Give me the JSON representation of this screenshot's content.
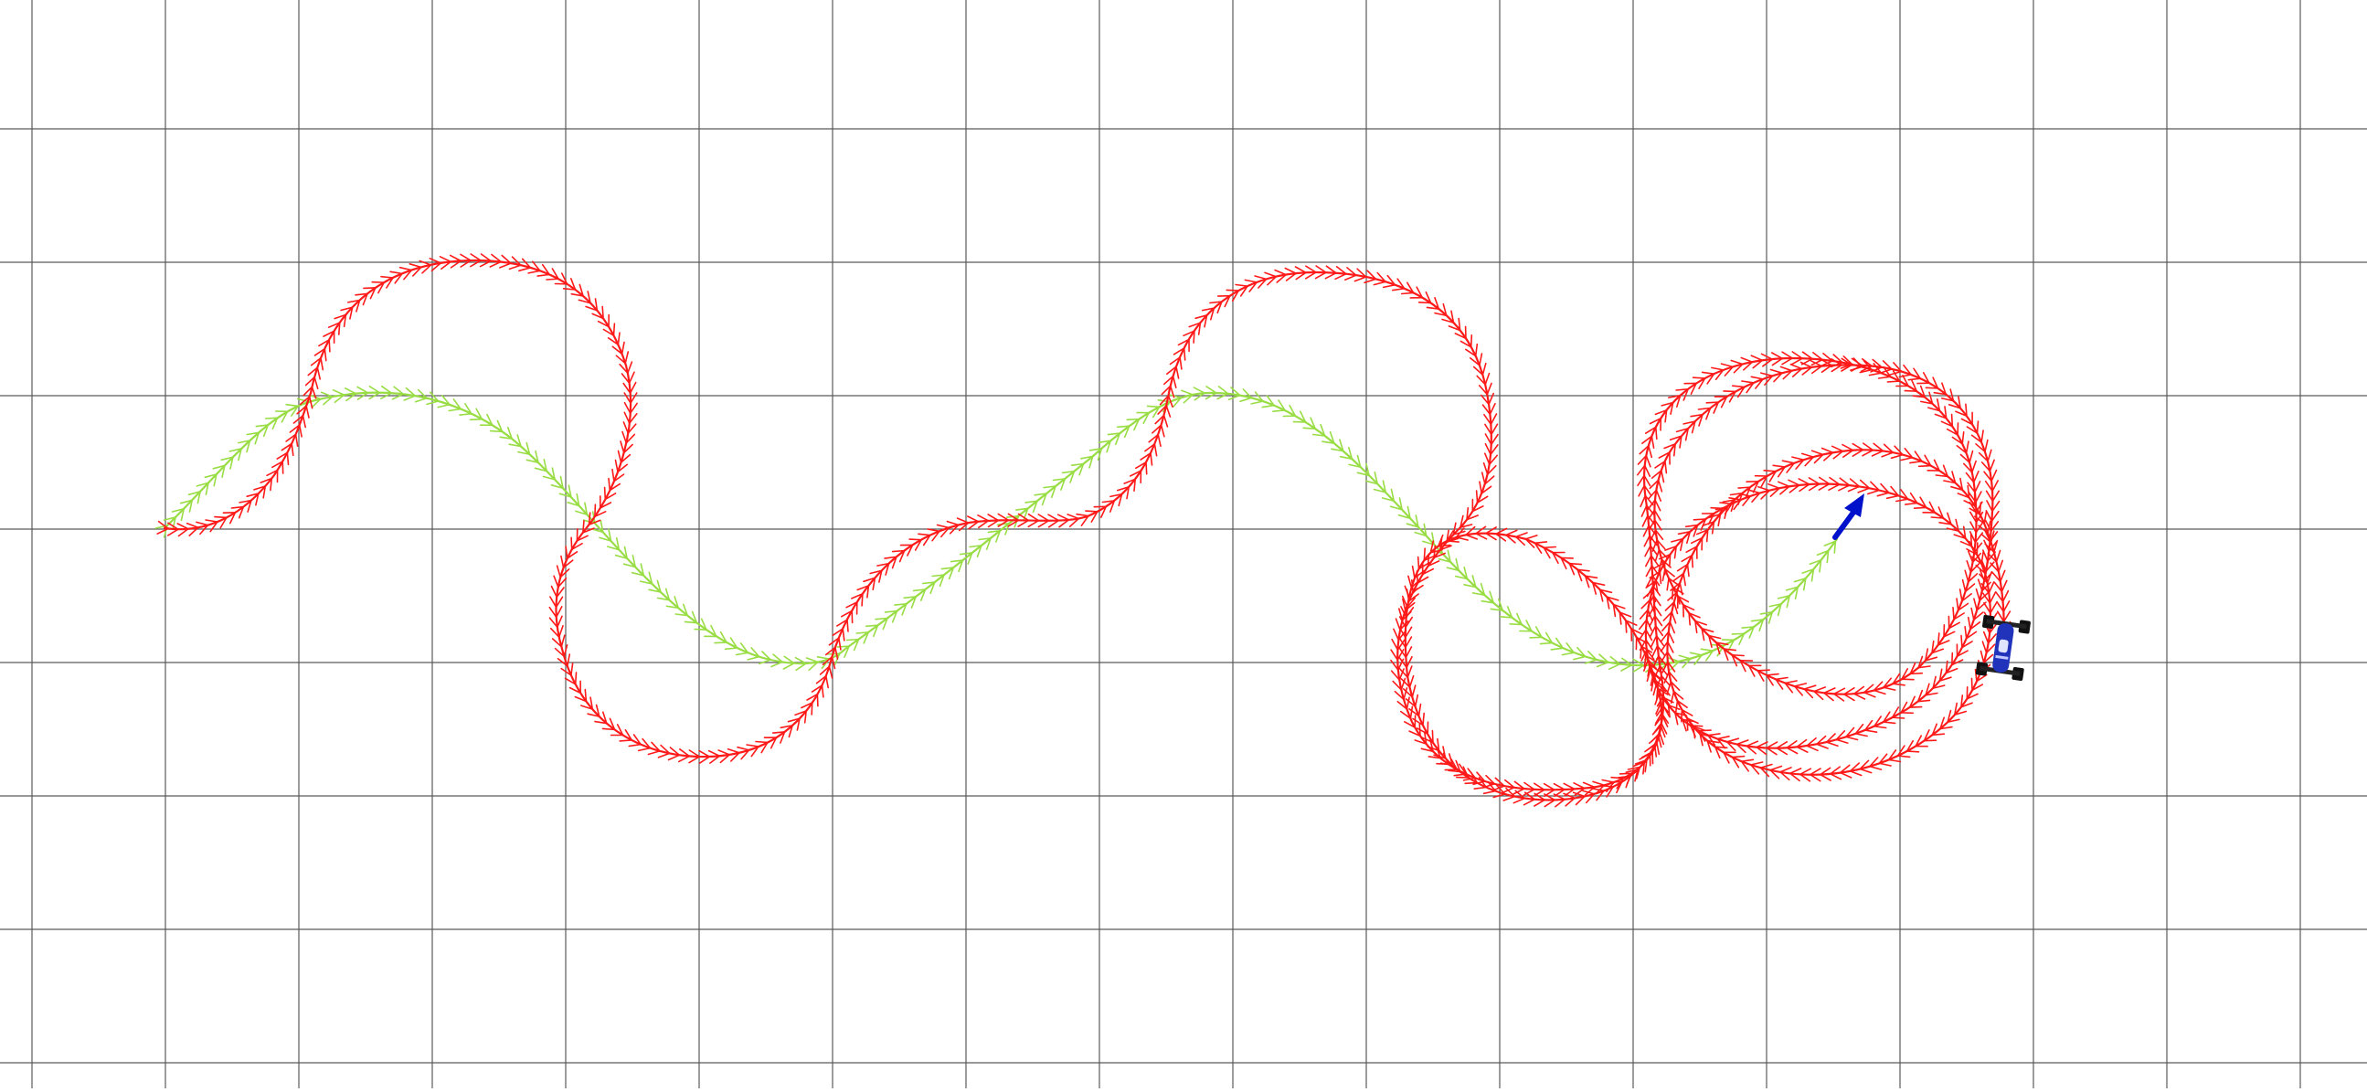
{
  "scene": {
    "background": "#ffffff",
    "grid_color": "#5a5a5a",
    "reference_color": "#99dd44",
    "driven_color": "#ff1a1a",
    "target_arrow_color": "#0011cc",
    "car_body_color": "#2233bb"
  },
  "grid": {
    "visible": true
  },
  "reference_path": {
    "icon": "chevron-trail"
  },
  "driven_path": {
    "icon": "chevron-trail"
  },
  "target_arrow": {
    "icon": "arrow-icon"
  },
  "vehicle": {
    "icon": "race-car-icon"
  }
}
